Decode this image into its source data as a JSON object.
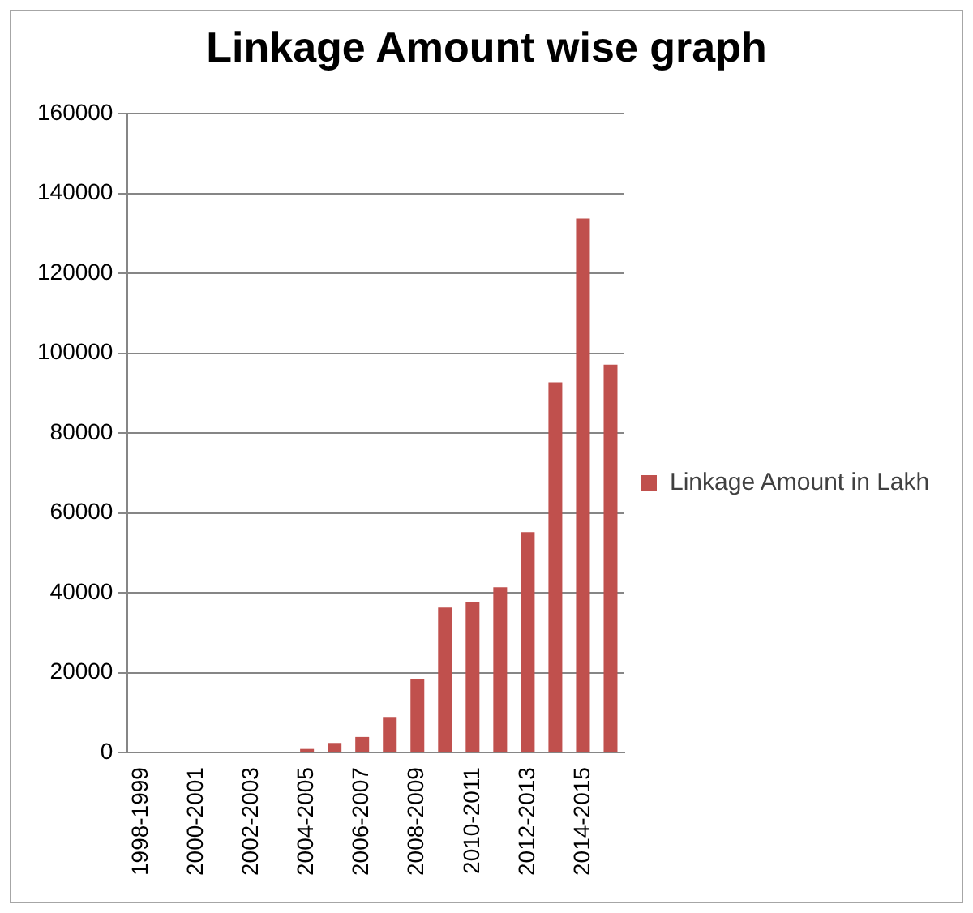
{
  "chart_data": {
    "type": "bar",
    "title": "Linkage Amount wise graph",
    "categories": [
      "1998-1999",
      null,
      "2000-2001",
      null,
      "2002-2003",
      null,
      "2004-2005",
      null,
      "2006-2007",
      null,
      "2008-2009",
      null,
      "2010-2011",
      null,
      "2012-2013",
      null,
      "2014-2015",
      null
    ],
    "series": [
      {
        "name": "Linkage Amount in Lakh",
        "color": "#c0504d",
        "values": [
          0,
          0,
          0,
          0,
          0,
          0,
          900,
          2400,
          3900,
          8900,
          18300,
          36300,
          37800,
          41400,
          55200,
          92700,
          133700,
          97100
        ]
      }
    ],
    "ylim": [
      0,
      160000
    ],
    "yticks": [
      0,
      20000,
      40000,
      60000,
      80000,
      100000,
      120000,
      140000,
      160000
    ],
    "grid": "y",
    "legend": "right"
  }
}
